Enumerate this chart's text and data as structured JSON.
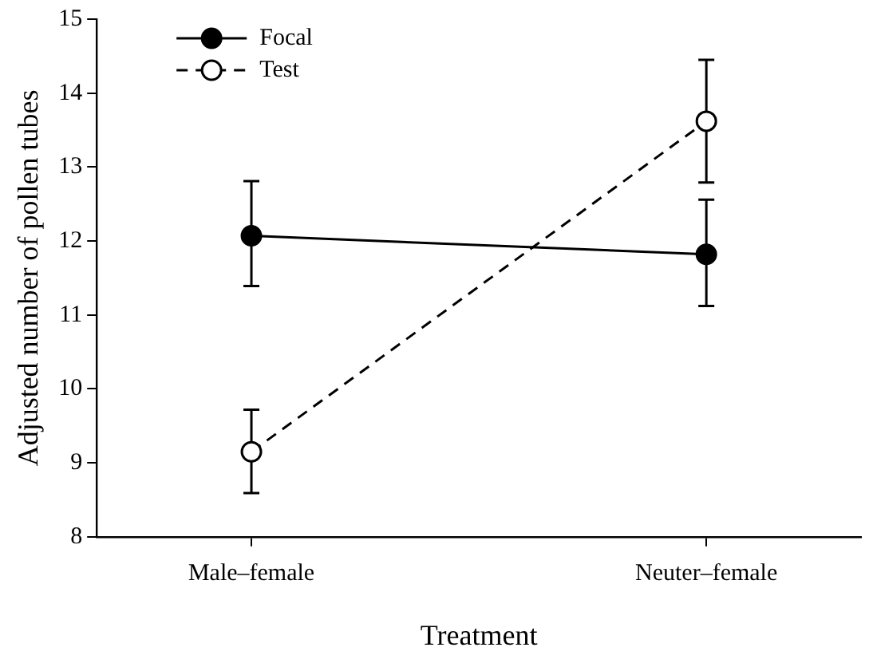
{
  "chart_data": {
    "type": "line",
    "xlabel": "Treatment",
    "ylabel": "Adjusted number of pollen tubes",
    "categories": [
      "Male–female",
      "Neuter–female"
    ],
    "series": [
      {
        "name": "Focal",
        "color": "#000000",
        "values": [
          12.07,
          11.82
        ],
        "errors": [
          [
            11.39,
            12.81
          ],
          [
            11.12,
            12.56
          ]
        ],
        "line_style": "solid",
        "marker": "circle"
      },
      {
        "name": "Test",
        "color": "#000000",
        "values": [
          9.15,
          13.62
        ],
        "errors": [
          [
            8.59,
            9.72
          ],
          [
            12.79,
            14.45
          ]
        ],
        "line_style": "dashed",
        "marker": "open circle"
      }
    ],
    "ylim": [
      8,
      15
    ],
    "yticks": [
      8,
      9,
      10,
      11,
      12,
      13,
      14,
      15
    ],
    "grid": false,
    "legend": "top left"
  }
}
